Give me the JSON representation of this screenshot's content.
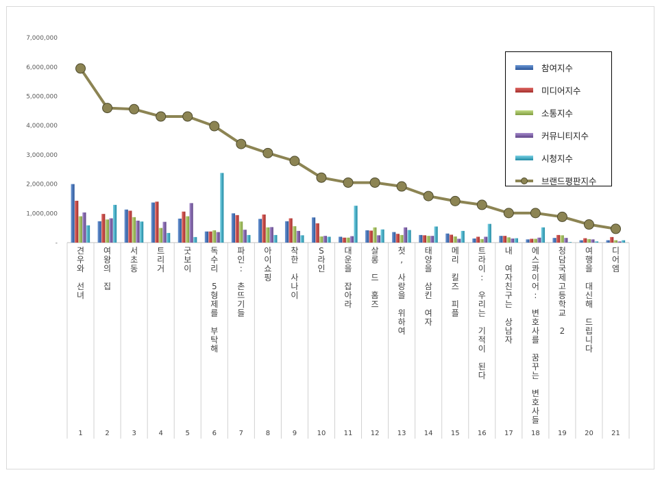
{
  "chart_data": {
    "type": "bar",
    "ylim": [
      0,
      7000000
    ],
    "yticks": [
      "-",
      "1,000,000",
      "2,000,000",
      "3,000,000",
      "4,000,000",
      "5,000,000",
      "6,000,000",
      "7,000,000"
    ],
    "categories": [
      "견우와 선녀",
      "여왕의 집",
      "서초동",
      "트리거",
      "굿보이",
      "독수리 5형제를 부탁해",
      "파인: 촌뜨기들",
      "아이쇼핑",
      "착한 사나이",
      "S라인",
      "대운을 잡아라",
      "살롱 드 홈즈",
      "첫, 사랑을 위하여",
      "태양을 삼킨 여자",
      "메리 킬즈 피플",
      "트라이: 우리는 기적이 된다",
      "내 여자친구는 상남자",
      "에스콰이어: 변호사를 꿈꾸는 변호사들",
      "청담국제고등학교 2",
      "여행을 대신해 드립니다",
      "디어엠"
    ],
    "numbers": [
      "1",
      "2",
      "3",
      "4",
      "5",
      "6",
      "7",
      "8",
      "9",
      "10",
      "11",
      "12",
      "13",
      "14",
      "15",
      "16",
      "17",
      "18",
      "19",
      "20",
      "21"
    ],
    "series": [
      {
        "name": "참여지수",
        "color": "#3b6db4",
        "values": [
          2000000,
          730000,
          1130000,
          1370000,
          820000,
          380000,
          1000000,
          810000,
          730000,
          860000,
          200000,
          420000,
          360000,
          260000,
          310000,
          140000,
          230000,
          110000,
          160000,
          80000,
          80000
        ]
      },
      {
        "name": "미디어지수",
        "color": "#c9403d",
        "values": [
          1430000,
          980000,
          1090000,
          1400000,
          1060000,
          380000,
          940000,
          960000,
          830000,
          660000,
          170000,
          410000,
          300000,
          250000,
          270000,
          200000,
          230000,
          130000,
          260000,
          150000,
          190000
        ]
      },
      {
        "name": "소통지수",
        "color": "#9bbb59",
        "values": [
          900000,
          790000,
          870000,
          500000,
          900000,
          420000,
          720000,
          520000,
          560000,
          210000,
          170000,
          520000,
          260000,
          230000,
          210000,
          120000,
          180000,
          130000,
          250000,
          120000,
          80000
        ]
      },
      {
        "name": "커뮤니티지수",
        "color": "#7f60a8",
        "values": [
          1030000,
          830000,
          750000,
          710000,
          1350000,
          360000,
          440000,
          530000,
          400000,
          230000,
          220000,
          250000,
          520000,
          230000,
          130000,
          200000,
          140000,
          170000,
          160000,
          110000,
          40000
        ]
      },
      {
        "name": "시청지수",
        "color": "#35a9c4",
        "values": [
          590000,
          1290000,
          720000,
          330000,
          190000,
          2380000,
          260000,
          260000,
          250000,
          200000,
          1260000,
          450000,
          430000,
          550000,
          400000,
          640000,
          150000,
          520000,
          20000,
          40000,
          80000
        ]
      }
    ],
    "line": {
      "name": "브랜드평판지수",
      "color": "#8c8453",
      "values": [
        5950000,
        4600000,
        4560000,
        4310000,
        4310000,
        3980000,
        3370000,
        3060000,
        2790000,
        2220000,
        2050000,
        2050000,
        1920000,
        1590000,
        1420000,
        1290000,
        1010000,
        1010000,
        880000,
        620000,
        470000
      ]
    },
    "legend_position": "top-right",
    "grid": false
  }
}
